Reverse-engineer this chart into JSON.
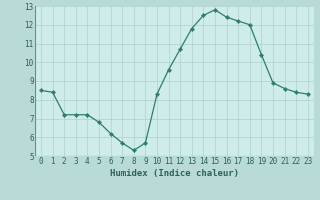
{
  "x": [
    0,
    1,
    2,
    3,
    4,
    5,
    6,
    7,
    8,
    9,
    10,
    11,
    12,
    13,
    14,
    15,
    16,
    17,
    18,
    19,
    20,
    21,
    22,
    23
  ],
  "y": [
    8.5,
    8.4,
    7.2,
    7.2,
    7.2,
    6.8,
    6.2,
    5.7,
    5.3,
    5.7,
    8.3,
    9.6,
    10.7,
    11.8,
    12.5,
    12.8,
    12.4,
    12.2,
    12.0,
    10.4,
    8.9,
    8.6,
    8.4,
    8.3
  ],
  "line_color": "#2e7d6e",
  "marker": "D",
  "marker_size": 2.2,
  "bg_color": "#ceecea",
  "plot_bg_color": "#ceecea",
  "bottom_bg_color": "#b8dbd8",
  "grid_color": "#aed0cd",
  "xlabel": "Humidex (Indice chaleur)",
  "xlim": [
    -0.5,
    23.5
  ],
  "ylim": [
    5,
    13
  ],
  "yticks": [
    5,
    6,
    7,
    8,
    9,
    10,
    11,
    12,
    13
  ],
  "xticks": [
    0,
    1,
    2,
    3,
    4,
    5,
    6,
    7,
    8,
    9,
    10,
    11,
    12,
    13,
    14,
    15,
    16,
    17,
    18,
    19,
    20,
    21,
    22,
    23
  ],
  "tick_fontsize": 5.5,
  "label_fontsize": 6.5
}
